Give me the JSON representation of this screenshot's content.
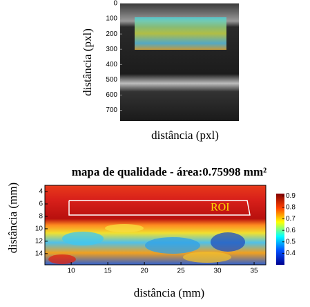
{
  "chart_data": [
    {
      "type": "image",
      "xlabel": "distância (pxl)",
      "ylabel": "distância (pxl)",
      "ylim": [
        0,
        770
      ],
      "yticks": [
        0,
        100,
        200,
        300,
        400,
        500,
        600,
        700
      ]
    },
    {
      "type": "heatmap",
      "title": "mapa de qualidade - área:0.75998 mm²",
      "xlabel": "distância (mm)",
      "ylabel": "distância (mm)",
      "xlim": [
        6.4,
        36.6
      ],
      "xticks": [
        10,
        15,
        20,
        25,
        30,
        35
      ],
      "ylim": [
        3,
        15.8
      ],
      "yticks": [
        4,
        6,
        8,
        10,
        12,
        14
      ],
      "clim": [
        0.3,
        0.92
      ],
      "cticks": [
        0.4,
        0.5,
        0.6,
        0.7,
        0.8,
        0.9
      ],
      "annotation": "ROI"
    }
  ]
}
